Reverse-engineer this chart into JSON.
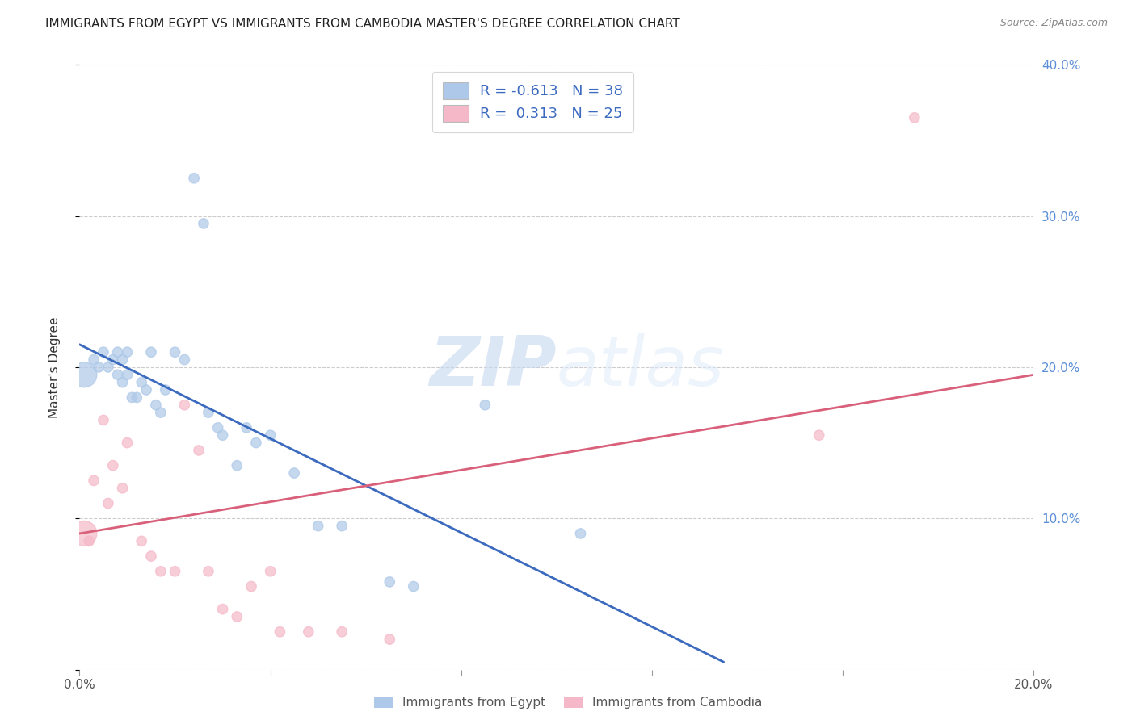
{
  "title": "IMMIGRANTS FROM EGYPT VS IMMIGRANTS FROM CAMBODIA MASTER'S DEGREE CORRELATION CHART",
  "source": "Source: ZipAtlas.com",
  "ylabel": "Master's Degree",
  "right_yticks": [
    0.0,
    0.1,
    0.2,
    0.3,
    0.4
  ],
  "right_yticklabels": [
    "",
    "10.0%",
    "20.0%",
    "30.0%",
    "40.0%"
  ],
  "xlim": [
    0.0,
    0.2
  ],
  "ylim": [
    0.0,
    0.4
  ],
  "egypt_color": "#adc8e8",
  "egypt_line_color": "#3b6abf",
  "cambodia_color": "#f5b8c8",
  "cambodia_line_color": "#d9607a",
  "watermark_zip": "ZIP",
  "watermark_atlas": "atlas",
  "egypt_scatter_x": [
    0.001,
    0.003,
    0.004,
    0.005,
    0.006,
    0.007,
    0.008,
    0.008,
    0.009,
    0.009,
    0.01,
    0.01,
    0.011,
    0.012,
    0.013,
    0.014,
    0.015,
    0.016,
    0.017,
    0.018,
    0.02,
    0.022,
    0.024,
    0.026,
    0.027,
    0.029,
    0.03,
    0.033,
    0.035,
    0.037,
    0.04,
    0.045,
    0.05,
    0.055,
    0.065,
    0.07,
    0.085,
    0.105
  ],
  "egypt_scatter_y": [
    0.195,
    0.205,
    0.2,
    0.21,
    0.2,
    0.205,
    0.21,
    0.195,
    0.205,
    0.19,
    0.21,
    0.195,
    0.18,
    0.18,
    0.19,
    0.185,
    0.21,
    0.175,
    0.17,
    0.185,
    0.21,
    0.205,
    0.325,
    0.295,
    0.17,
    0.16,
    0.155,
    0.135,
    0.16,
    0.15,
    0.155,
    0.13,
    0.095,
    0.095,
    0.058,
    0.055,
    0.175,
    0.09
  ],
  "egypt_bubble_sizes": [
    500,
    80,
    80,
    80,
    80,
    80,
    80,
    80,
    80,
    80,
    80,
    80,
    80,
    80,
    80,
    80,
    80,
    80,
    80,
    80,
    80,
    80,
    80,
    80,
    80,
    80,
    80,
    80,
    80,
    80,
    80,
    80,
    80,
    80,
    80,
    80,
    80,
    80
  ],
  "cambodia_scatter_x": [
    0.001,
    0.002,
    0.003,
    0.005,
    0.006,
    0.007,
    0.009,
    0.01,
    0.013,
    0.015,
    0.017,
    0.02,
    0.022,
    0.025,
    0.027,
    0.03,
    0.033,
    0.036,
    0.04,
    0.042,
    0.048,
    0.055,
    0.065,
    0.155,
    0.175
  ],
  "cambodia_scatter_y": [
    0.09,
    0.085,
    0.125,
    0.165,
    0.11,
    0.135,
    0.12,
    0.15,
    0.085,
    0.075,
    0.065,
    0.065,
    0.175,
    0.145,
    0.065,
    0.04,
    0.035,
    0.055,
    0.065,
    0.025,
    0.025,
    0.025,
    0.02,
    0.155,
    0.365
  ],
  "cambodia_bubble_sizes": [
    500,
    80,
    80,
    80,
    80,
    80,
    80,
    80,
    80,
    80,
    80,
    80,
    80,
    80,
    80,
    80,
    80,
    80,
    80,
    80,
    80,
    80,
    80,
    80,
    80
  ],
  "egypt_line_x0": 0.0,
  "egypt_line_y0": 0.215,
  "egypt_line_x1": 0.135,
  "egypt_line_y1": 0.005,
  "cambodia_line_x0": 0.0,
  "cambodia_line_y0": 0.09,
  "cambodia_line_x1": 0.2,
  "cambodia_line_y1": 0.195,
  "legend_label1_prefix": "R = ",
  "legend_label1_value": "-0.613",
  "legend_label1_n": "N = 38",
  "legend_label2_prefix": "R =  ",
  "legend_label2_value": "0.313",
  "legend_label2_n": "N = 25",
  "bottom_legend1": "Immigrants from Egypt",
  "bottom_legend2": "Immigrants from Cambodia"
}
